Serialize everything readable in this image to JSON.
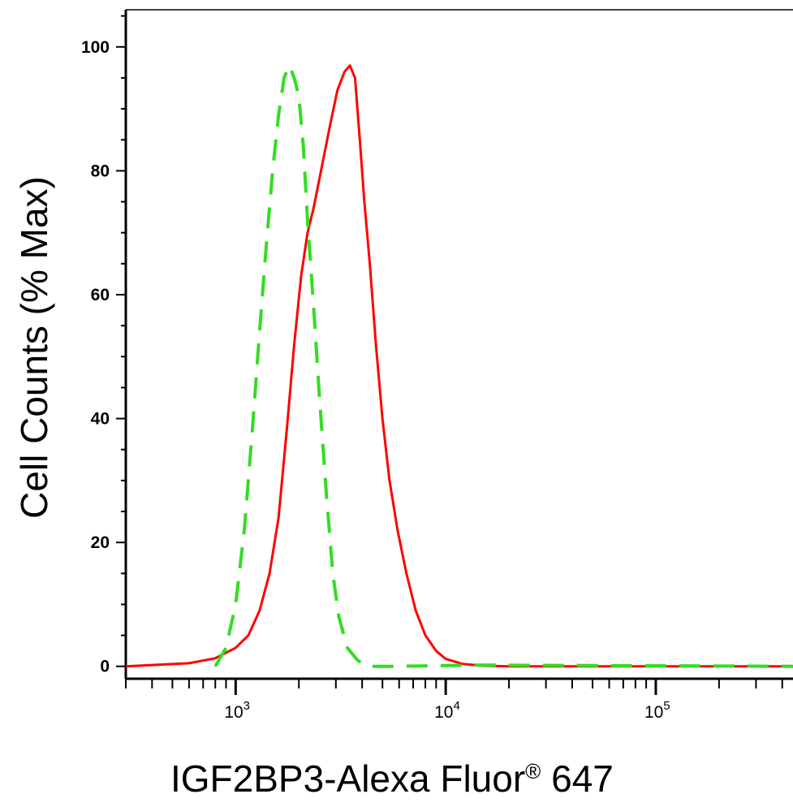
{
  "chart_data": {
    "type": "line",
    "xlabel": "IGF2BP3-Alexa Fluor",
    "xlabel_superscript": "®",
    "xlabel_suffix": " 647",
    "ylabel": "Cell Counts (% Max)",
    "xscale": "log",
    "xlim": [
      300,
      450000
    ],
    "ylim": [
      -2,
      106
    ],
    "yticks": [
      0,
      20,
      40,
      60,
      80,
      100
    ],
    "xticks": [
      {
        "value": 1000,
        "base": "10",
        "exp": "3"
      },
      {
        "value": 10000,
        "base": "10",
        "exp": "4"
      },
      {
        "value": 100000,
        "base": "10",
        "exp": "5"
      }
    ],
    "grid": false,
    "series": [
      {
        "color": "#ff0000",
        "style": "solid",
        "points": [
          [
            300,
            0
          ],
          [
            450,
            0.3
          ],
          [
            600,
            0.5
          ],
          [
            800,
            1.3
          ],
          [
            1000,
            3
          ],
          [
            1150,
            5
          ],
          [
            1300,
            9
          ],
          [
            1450,
            15
          ],
          [
            1600,
            24
          ],
          [
            1750,
            38
          ],
          [
            1900,
            52
          ],
          [
            2050,
            63
          ],
          [
            2200,
            70
          ],
          [
            2350,
            74
          ],
          [
            2550,
            80
          ],
          [
            2800,
            87
          ],
          [
            3050,
            93
          ],
          [
            3300,
            96
          ],
          [
            3500,
            97
          ],
          [
            3700,
            95
          ],
          [
            3900,
            85
          ],
          [
            4100,
            75
          ],
          [
            4350,
            65
          ],
          [
            4650,
            52
          ],
          [
            5000,
            40
          ],
          [
            5400,
            30
          ],
          [
            5900,
            22
          ],
          [
            6500,
            15
          ],
          [
            7200,
            9
          ],
          [
            8000,
            5
          ],
          [
            9000,
            2.5
          ],
          [
            10000,
            1.2
          ],
          [
            12000,
            0.4
          ],
          [
            15000,
            0.1
          ],
          [
            20000,
            0
          ],
          [
            450000,
            0
          ]
        ]
      },
      {
        "color": "#33dd22",
        "style": "dashed",
        "points": [
          [
            800,
            0
          ],
          [
            900,
            3
          ],
          [
            1000,
            10
          ],
          [
            1100,
            22
          ],
          [
            1200,
            38
          ],
          [
            1300,
            54
          ],
          [
            1400,
            68
          ],
          [
            1500,
            80
          ],
          [
            1600,
            89
          ],
          [
            1700,
            95
          ],
          [
            1800,
            97
          ],
          [
            1900,
            95
          ],
          [
            2000,
            92
          ],
          [
            2100,
            84
          ],
          [
            2200,
            72
          ],
          [
            2350,
            58
          ],
          [
            2500,
            44
          ],
          [
            2700,
            28
          ],
          [
            2900,
            15
          ],
          [
            3100,
            8
          ],
          [
            3400,
            3
          ],
          [
            3800,
            1
          ],
          [
            4200,
            0
          ],
          [
            6000,
            0
          ],
          [
            14000,
            0.2
          ],
          [
            450000,
            0
          ]
        ]
      }
    ]
  }
}
